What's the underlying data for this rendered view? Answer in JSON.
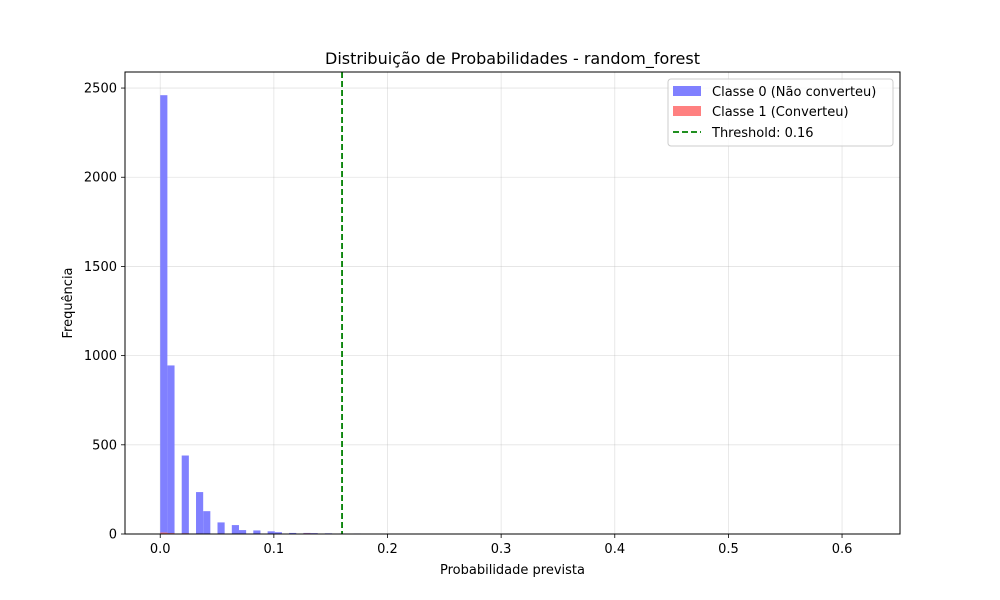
{
  "chart_data": {
    "type": "bar",
    "title": "Distribuição de Probabilidades - random_forest",
    "xlabel": "Probabilidade prevista",
    "ylabel": "Frequência",
    "xlim": [
      -0.031,
      0.651
    ],
    "ylim": [
      0,
      2590
    ],
    "xticks": [
      0.0,
      0.1,
      0.2,
      0.3,
      0.4,
      0.5,
      0.6
    ],
    "xtick_labels": [
      "0.0",
      "0.1",
      "0.2",
      "0.3",
      "0.4",
      "0.5",
      "0.6"
    ],
    "yticks": [
      0,
      500,
      1000,
      1500,
      2000,
      2500
    ],
    "ytick_labels": [
      "0",
      "500",
      "1000",
      "1500",
      "2000",
      "2500"
    ],
    "grid": true,
    "legend_position": "top-right",
    "bin_width": 0.0063,
    "series": [
      {
        "name": "Classe 0 (Não converteu)",
        "color": "#8080ff",
        "x": [
          0.0,
          0.0063,
          0.0189,
          0.0315,
          0.0378,
          0.0504,
          0.063,
          0.0693,
          0.0819,
          0.0945,
          0.1008,
          0.1134,
          0.126,
          0.1323,
          0.1449,
          0.1575,
          0.1701
        ],
        "values": [
          2460,
          945,
          440,
          235,
          128,
          65,
          50,
          22,
          20,
          15,
          10,
          6,
          6,
          5,
          4,
          3,
          3
        ]
      },
      {
        "name": "Classe 1 (Converteu)",
        "color": "#ff8080",
        "x": [
          0.0,
          0.0063,
          0.0189,
          0.0315,
          0.0504,
          0.063,
          0.126,
          0.1323
        ],
        "values": [
          8,
          5,
          4,
          3,
          3,
          2,
          4,
          3
        ]
      }
    ],
    "threshold": {
      "label": "Threshold: 0.16",
      "value": 0.16,
      "color": "#008000"
    }
  }
}
